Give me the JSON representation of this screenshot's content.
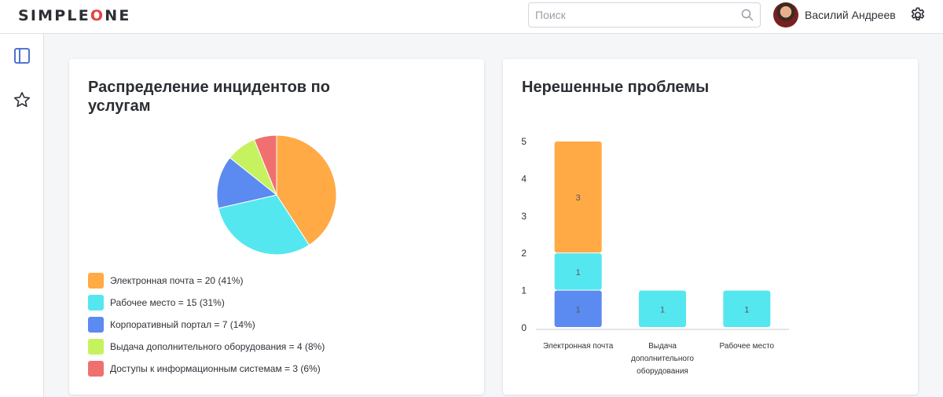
{
  "header": {
    "logo_left": "SIMPLE",
    "logo_o": "O",
    "logo_right": "NE",
    "search_placeholder": "Поиск",
    "user_name": "Василий Андреев"
  },
  "icons": {
    "search": "search-icon",
    "settings": "gear-icon",
    "sidebar_toggle": "sidebar-panel-icon",
    "favorites": "star-icon"
  },
  "colors": {
    "orange": "#ffaa44",
    "cyan": "#55e7f0",
    "blue": "#5b8af0",
    "green": "#c5f25e",
    "red": "#f07070"
  },
  "widgets": {
    "pie": {
      "title": "Распределение инцидентов по услугам",
      "legend": [
        {
          "label": "Электронная почта = 20 (41%)",
          "color": "#ffaa44"
        },
        {
          "label": "Рабочее место = 15 (31%)",
          "color": "#55e7f0"
        },
        {
          "label": "Корпоративный портал = 7 (14%)",
          "color": "#5b8af0"
        },
        {
          "label": "Выдача дополнительного оборудования = 4 (8%)",
          "color": "#c5f25e"
        },
        {
          "label": "Доступы к информационным системам = 3 (6%)",
          "color": "#f07070"
        }
      ]
    },
    "bar": {
      "title": "Нерешенные проблемы"
    }
  },
  "chart_data": [
    {
      "type": "pie",
      "title": "Распределение инцидентов по услугам",
      "slices": [
        {
          "label": "Электронная почта",
          "value": 20,
          "percent": 41,
          "color": "#ffaa44"
        },
        {
          "label": "Рабочее место",
          "value": 15,
          "percent": 31,
          "color": "#55e7f0"
        },
        {
          "label": "Корпоративный портал",
          "value": 7,
          "percent": 14,
          "color": "#5b8af0"
        },
        {
          "label": "Выдача дополнительного оборудования",
          "value": 4,
          "percent": 8,
          "color": "#c5f25e"
        },
        {
          "label": "Доступы к информационным системам",
          "value": 3,
          "percent": 6,
          "color": "#f07070"
        }
      ]
    },
    {
      "type": "bar",
      "stacked": true,
      "title": "Нерешенные проблемы",
      "categories": [
        "Электронная почта",
        "Выдача дополнительного оборудования",
        "Рабочее место"
      ],
      "category_lines": [
        [
          "Электронная почта"
        ],
        [
          "Выдача",
          "дополнительного",
          "оборудования"
        ],
        [
          "Рабочее место"
        ]
      ],
      "series": [
        {
          "color": "#5b8af0",
          "values": [
            1,
            0,
            0
          ]
        },
        {
          "color": "#55e7f0",
          "values": [
            1,
            1,
            1
          ]
        },
        {
          "color": "#ffaa44",
          "values": [
            3,
            0,
            0
          ]
        }
      ],
      "yticks": [
        0,
        1,
        2,
        3,
        4,
        5
      ],
      "ylim": [
        0,
        5
      ]
    }
  ]
}
